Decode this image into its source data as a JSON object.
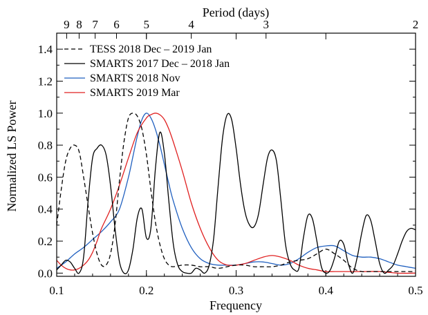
{
  "chart_data": {
    "type": "line",
    "xlabel": "Frequency",
    "ylabel": "Normalized LS Power",
    "top_xlabel": "Period (days)",
    "xlim": [
      0.1,
      0.5
    ],
    "ylim": [
      -0.02,
      1.5
    ],
    "x_ticks": [
      0.1,
      0.2,
      0.3,
      0.4,
      0.5
    ],
    "x_tick_labels": [
      "0.1",
      "0.2",
      "0.3",
      "0.4",
      "0.5"
    ],
    "y_ticks": [
      0.0,
      0.2,
      0.4,
      0.6,
      0.8,
      1.0,
      1.2,
      1.4
    ],
    "y_tick_labels": [
      "0.0",
      "0.2",
      "0.4",
      "0.6",
      "0.8",
      "1.0",
      "1.2",
      "1.4"
    ],
    "top_ticks": [
      9,
      8,
      7,
      6,
      5,
      4,
      3,
      2
    ],
    "top_tick_labels": [
      "9",
      "8",
      "7",
      "6",
      "5",
      "4",
      "3",
      "2"
    ],
    "legend_position": "top-left",
    "series": [
      {
        "name": "TESS 2018 Dec – 2019 Jan",
        "color": "#000000",
        "dash": "dashed",
        "x": [
          0.1,
          0.105,
          0.11,
          0.115,
          0.12,
          0.125,
          0.13,
          0.135,
          0.14,
          0.145,
          0.15,
          0.155,
          0.16,
          0.165,
          0.17,
          0.175,
          0.18,
          0.185,
          0.19,
          0.195,
          0.2,
          0.205,
          0.21,
          0.215,
          0.22,
          0.225,
          0.23,
          0.24,
          0.25,
          0.26,
          0.27,
          0.28,
          0.29,
          0.3,
          0.31,
          0.32,
          0.33,
          0.34,
          0.35,
          0.36,
          0.37,
          0.38,
          0.39,
          0.4,
          0.41,
          0.42,
          0.43,
          0.44,
          0.45,
          0.46,
          0.47,
          0.48,
          0.49,
          0.5
        ],
        "y": [
          0.3,
          0.52,
          0.7,
          0.78,
          0.8,
          0.76,
          0.6,
          0.42,
          0.25,
          0.12,
          0.05,
          0.05,
          0.12,
          0.3,
          0.58,
          0.82,
          0.97,
          1.0,
          0.98,
          0.9,
          0.74,
          0.52,
          0.32,
          0.18,
          0.09,
          0.05,
          0.04,
          0.05,
          0.05,
          0.04,
          0.04,
          0.03,
          0.04,
          0.05,
          0.05,
          0.04,
          0.04,
          0.04,
          0.05,
          0.07,
          0.08,
          0.09,
          0.12,
          0.15,
          0.12,
          0.08,
          0.03,
          0.01,
          0.01,
          0.01,
          0.01,
          0.01,
          0.01,
          0.01
        ]
      },
      {
        "name": "SMARTS 2017 Dec – 2018 Jan",
        "color": "#000000",
        "dash": "solid",
        "x": [
          0.1,
          0.105,
          0.11,
          0.115,
          0.12,
          0.125,
          0.13,
          0.135,
          0.14,
          0.145,
          0.15,
          0.155,
          0.16,
          0.165,
          0.17,
          0.175,
          0.18,
          0.185,
          0.19,
          0.195,
          0.2,
          0.205,
          0.21,
          0.215,
          0.22,
          0.225,
          0.23,
          0.235,
          0.24,
          0.245,
          0.25,
          0.255,
          0.26,
          0.265,
          0.27,
          0.275,
          0.28,
          0.285,
          0.29,
          0.295,
          0.3,
          0.305,
          0.31,
          0.315,
          0.32,
          0.325,
          0.33,
          0.335,
          0.34,
          0.345,
          0.35,
          0.355,
          0.36,
          0.365,
          0.37,
          0.375,
          0.38,
          0.385,
          0.39,
          0.395,
          0.4,
          0.405,
          0.41,
          0.415,
          0.42,
          0.425,
          0.43,
          0.435,
          0.44,
          0.445,
          0.45,
          0.455,
          0.46,
          0.465,
          0.47,
          0.475,
          0.48,
          0.485,
          0.49,
          0.495,
          0.5
        ],
        "y": [
          0.02,
          0.05,
          0.08,
          0.07,
          0.03,
          0.0,
          0.1,
          0.45,
          0.72,
          0.78,
          0.8,
          0.74,
          0.55,
          0.28,
          0.07,
          0.0,
          0.02,
          0.15,
          0.35,
          0.4,
          0.22,
          0.28,
          0.65,
          0.88,
          0.75,
          0.45,
          0.18,
          0.05,
          0.01,
          0.0,
          0.0,
          0.03,
          0.02,
          0.0,
          0.05,
          0.22,
          0.55,
          0.85,
          0.99,
          0.96,
          0.78,
          0.55,
          0.38,
          0.3,
          0.29,
          0.37,
          0.55,
          0.72,
          0.77,
          0.7,
          0.45,
          0.18,
          0.06,
          0.02,
          0.03,
          0.22,
          0.36,
          0.34,
          0.2,
          0.04,
          0.0,
          0.02,
          0.1,
          0.2,
          0.18,
          0.06,
          0.0,
          0.1,
          0.25,
          0.36,
          0.33,
          0.2,
          0.06,
          0.0,
          0.02,
          0.05,
          0.12,
          0.2,
          0.26,
          0.28,
          0.27
        ]
      },
      {
        "name": "SMARTS 2018 Nov",
        "color": "#1f5fbf",
        "dash": "solid",
        "x": [
          0.1,
          0.11,
          0.12,
          0.13,
          0.14,
          0.15,
          0.16,
          0.17,
          0.18,
          0.185,
          0.19,
          0.195,
          0.2,
          0.205,
          0.21,
          0.215,
          0.22,
          0.225,
          0.23,
          0.24,
          0.25,
          0.26,
          0.27,
          0.28,
          0.29,
          0.3,
          0.31,
          0.32,
          0.33,
          0.34,
          0.35,
          0.36,
          0.37,
          0.38,
          0.39,
          0.4,
          0.41,
          0.42,
          0.43,
          0.44,
          0.45,
          0.46,
          0.47,
          0.48,
          0.49,
          0.5
        ],
        "y": [
          0.03,
          0.07,
          0.12,
          0.16,
          0.21,
          0.26,
          0.32,
          0.4,
          0.6,
          0.73,
          0.86,
          0.96,
          1.0,
          0.97,
          0.9,
          0.8,
          0.68,
          0.56,
          0.45,
          0.28,
          0.16,
          0.09,
          0.06,
          0.05,
          0.05,
          0.05,
          0.06,
          0.07,
          0.07,
          0.06,
          0.05,
          0.06,
          0.09,
          0.13,
          0.16,
          0.17,
          0.17,
          0.14,
          0.11,
          0.1,
          0.1,
          0.09,
          0.07,
          0.05,
          0.04,
          0.03
        ]
      },
      {
        "name": "SMARTS 2019 Mar",
        "color": "#e02020",
        "dash": "solid",
        "x": [
          0.1,
          0.105,
          0.11,
          0.115,
          0.12,
          0.125,
          0.13,
          0.135,
          0.14,
          0.145,
          0.15,
          0.16,
          0.17,
          0.18,
          0.19,
          0.2,
          0.205,
          0.21,
          0.215,
          0.22,
          0.225,
          0.23,
          0.24,
          0.25,
          0.26,
          0.27,
          0.28,
          0.29,
          0.3,
          0.31,
          0.32,
          0.33,
          0.34,
          0.35,
          0.36,
          0.37,
          0.38,
          0.39,
          0.4,
          0.41,
          0.42,
          0.44,
          0.46,
          0.48,
          0.5
        ],
        "y": [
          0.08,
          0.05,
          0.03,
          0.02,
          0.02,
          0.03,
          0.05,
          0.08,
          0.13,
          0.2,
          0.28,
          0.4,
          0.55,
          0.72,
          0.88,
          0.97,
          0.99,
          1.0,
          0.99,
          0.96,
          0.9,
          0.82,
          0.64,
          0.44,
          0.28,
          0.16,
          0.08,
          0.05,
          0.05,
          0.06,
          0.08,
          0.1,
          0.11,
          0.1,
          0.08,
          0.05,
          0.03,
          0.02,
          0.01,
          0.01,
          0.01,
          0.01,
          0.01,
          0.0,
          0.0
        ]
      }
    ]
  }
}
